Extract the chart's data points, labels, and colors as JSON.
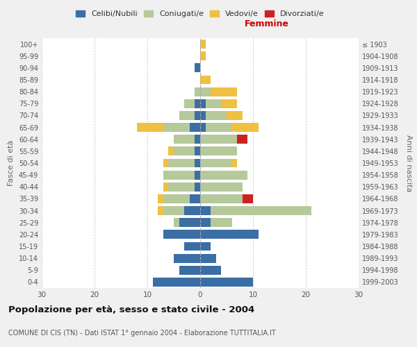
{
  "age_groups": [
    "0-4",
    "5-9",
    "10-14",
    "15-19",
    "20-24",
    "25-29",
    "30-34",
    "35-39",
    "40-44",
    "45-49",
    "50-54",
    "55-59",
    "60-64",
    "65-69",
    "70-74",
    "75-79",
    "80-84",
    "85-89",
    "90-94",
    "95-99",
    "100+"
  ],
  "birth_years": [
    "1999-2003",
    "1994-1998",
    "1989-1993",
    "1984-1988",
    "1979-1983",
    "1974-1978",
    "1969-1973",
    "1964-1968",
    "1959-1963",
    "1954-1958",
    "1949-1953",
    "1944-1948",
    "1939-1943",
    "1934-1938",
    "1929-1933",
    "1924-1928",
    "1919-1923",
    "1914-1918",
    "1909-1913",
    "1904-1908",
    "≤ 1903"
  ],
  "colors": {
    "celibi": "#3a6ea5",
    "coniugati": "#b5c99a",
    "vedovi": "#f0c040",
    "divorziati": "#cc2222"
  },
  "male": {
    "celibi": [
      9,
      4,
      5,
      3,
      7,
      4,
      3,
      2,
      1,
      1,
      1,
      1,
      1,
      2,
      1,
      1,
      0,
      0,
      1,
      0,
      0
    ],
    "coniugati": [
      0,
      0,
      0,
      0,
      0,
      1,
      4,
      5,
      5,
      6,
      5,
      4,
      4,
      5,
      3,
      2,
      1,
      0,
      0,
      0,
      0
    ],
    "vedovi": [
      0,
      0,
      0,
      0,
      0,
      0,
      1,
      1,
      1,
      0,
      1,
      1,
      0,
      5,
      0,
      0,
      0,
      0,
      0,
      0,
      0
    ],
    "divorziati": [
      0,
      0,
      0,
      0,
      0,
      0,
      0,
      0,
      0,
      0,
      0,
      0,
      0,
      0,
      0,
      0,
      0,
      0,
      0,
      0,
      0
    ]
  },
  "female": {
    "celibi": [
      10,
      4,
      3,
      2,
      11,
      2,
      2,
      0,
      0,
      0,
      0,
      0,
      0,
      1,
      1,
      1,
      0,
      0,
      0,
      0,
      0
    ],
    "coniugati": [
      0,
      0,
      0,
      0,
      0,
      4,
      19,
      8,
      8,
      9,
      6,
      7,
      7,
      5,
      4,
      3,
      2,
      0,
      0,
      0,
      0
    ],
    "vedovi": [
      0,
      0,
      0,
      0,
      0,
      0,
      0,
      0,
      0,
      0,
      1,
      0,
      0,
      5,
      3,
      3,
      5,
      2,
      0,
      1,
      1
    ],
    "divorziati": [
      0,
      0,
      0,
      0,
      0,
      0,
      0,
      2,
      0,
      0,
      0,
      0,
      2,
      0,
      0,
      0,
      0,
      0,
      0,
      0,
      0
    ]
  },
  "xlim": 30,
  "title": "Popolazione per età, sesso e stato civile - 2004",
  "subtitle": "COMUNE DI CIS (TN) - Dati ISTAT 1° gennaio 2004 - Elaborazione TUTTITALIA.IT",
  "xlabel_right": "Femmine",
  "ylabel_left": "Fasce di età",
  "ylabel_right": "Anni di nascita",
  "legend_labels": [
    "Celibi/Nubili",
    "Coniugati/e",
    "Vedovi/e",
    "Divorziati/e"
  ],
  "bg_color": "#f0f0f0",
  "plot_bg": "#ffffff"
}
